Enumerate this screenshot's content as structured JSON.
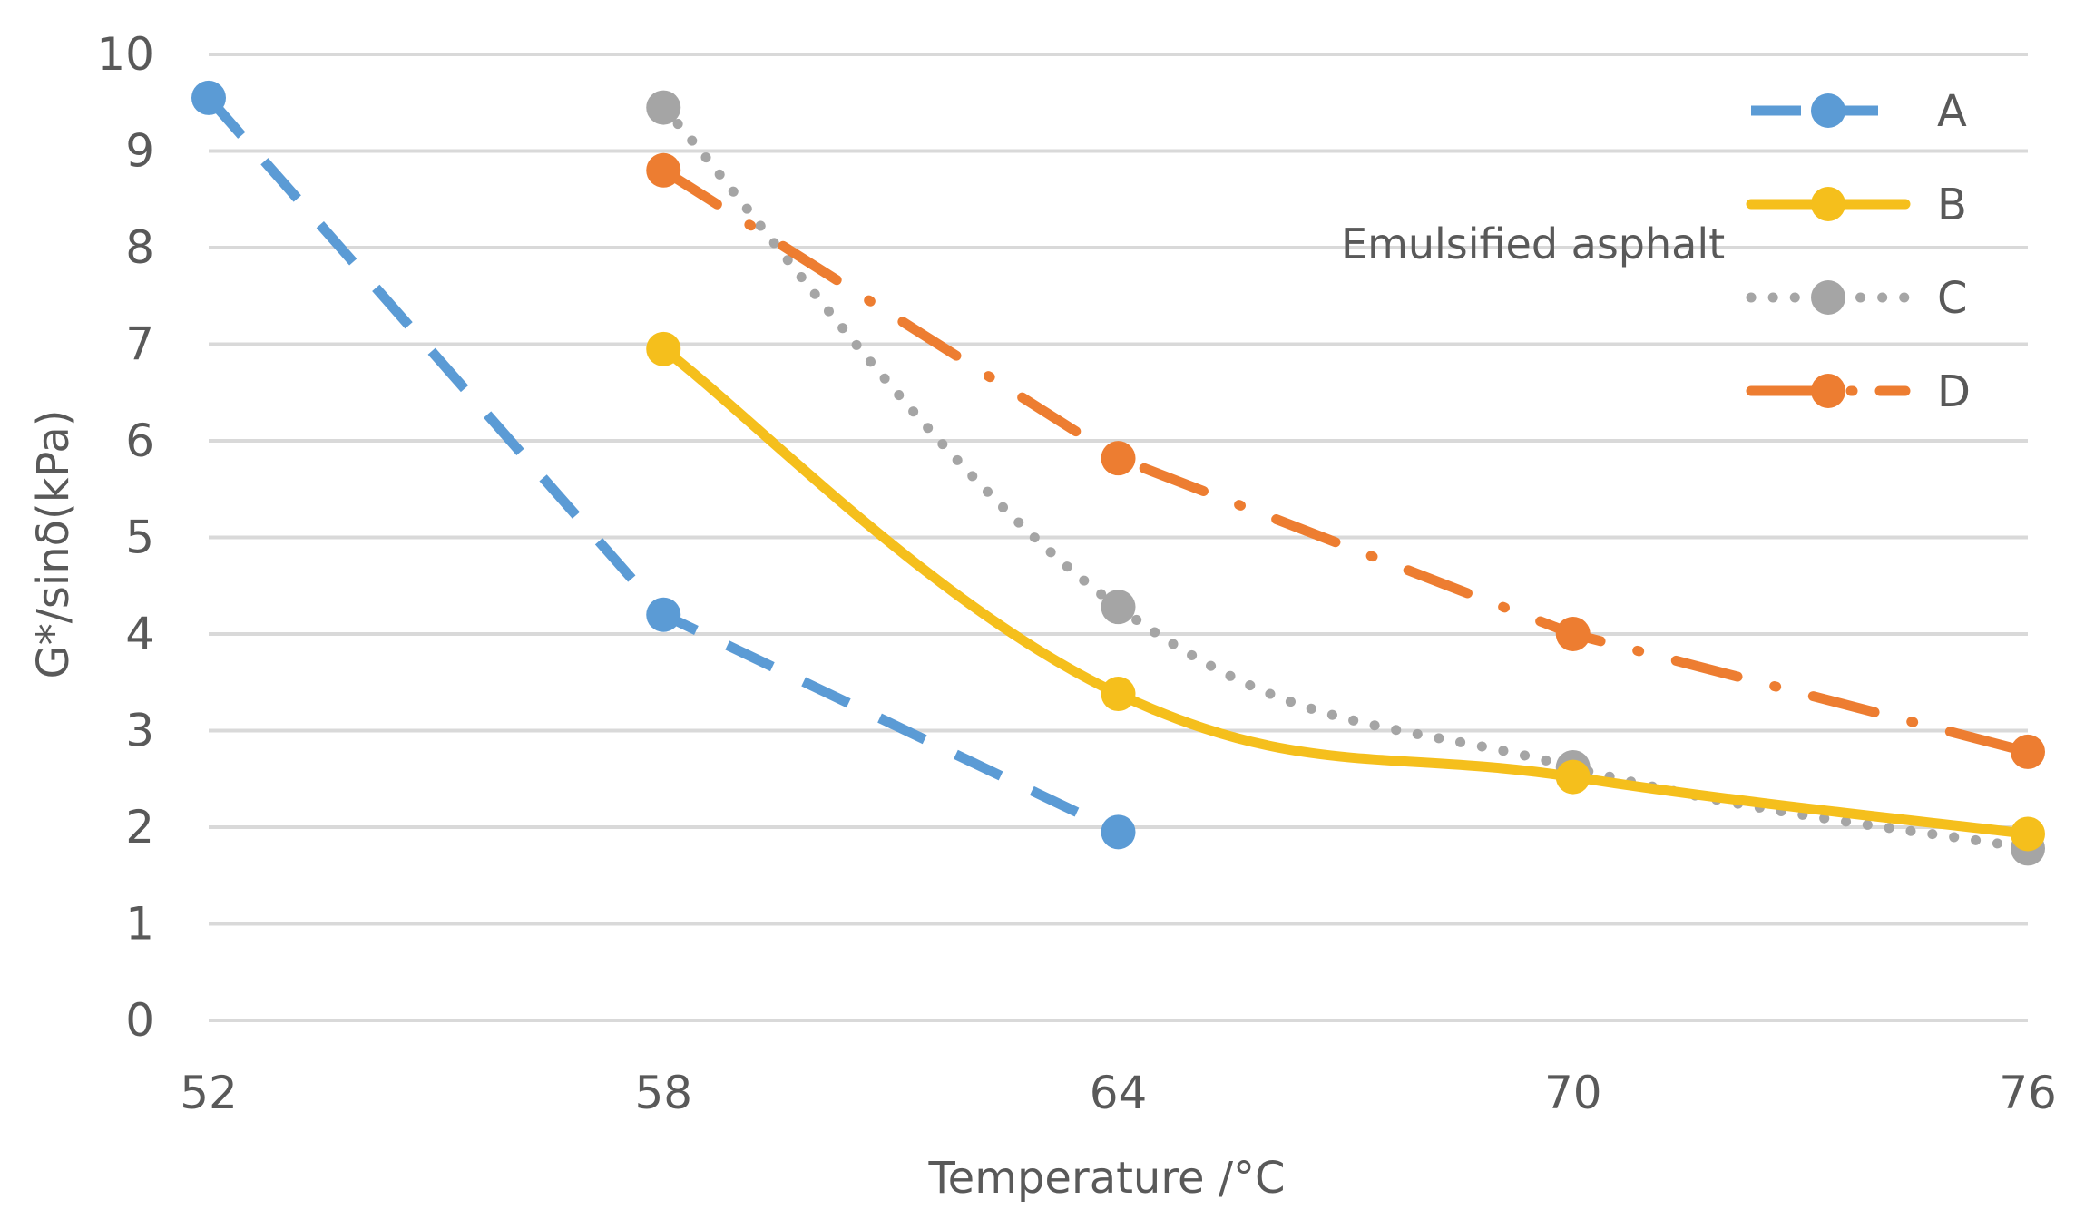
{
  "chart_data": {
    "type": "line",
    "title": "",
    "xlabel": "Temperature  /°C",
    "ylabel": "G*/sinδ(kPa)",
    "xlim": [
      52,
      76
    ],
    "ylim": [
      0,
      10
    ],
    "x_ticks": [
      "52",
      "58",
      "64",
      "70",
      "76"
    ],
    "y_ticks": [
      "0",
      "1",
      "2",
      "3",
      "4",
      "5",
      "6",
      "7",
      "8",
      "9",
      "10"
    ],
    "grid": true,
    "legend_position": "top-right",
    "annotation": "Emulsified asphalt",
    "series": [
      {
        "name": "A",
        "color": "#5b9bd5",
        "x": [
          52,
          58,
          64
        ],
        "values": [
          9.55,
          4.2,
          1.95
        ]
      },
      {
        "name": "B",
        "color": "#f5bf1c",
        "x": [
          58,
          64,
          70,
          76
        ],
        "values": [
          6.95,
          3.38,
          2.52,
          1.93
        ]
      },
      {
        "name": "C",
        "color": "#a5a5a5",
        "x": [
          58,
          64,
          70,
          76
        ],
        "values": [
          9.45,
          4.28,
          2.62,
          1.78
        ]
      },
      {
        "name": "D",
        "color": "#ed7d31",
        "x": [
          58,
          64,
          70,
          76
        ],
        "values": [
          8.8,
          5.82,
          4.0,
          2.78
        ]
      }
    ]
  }
}
